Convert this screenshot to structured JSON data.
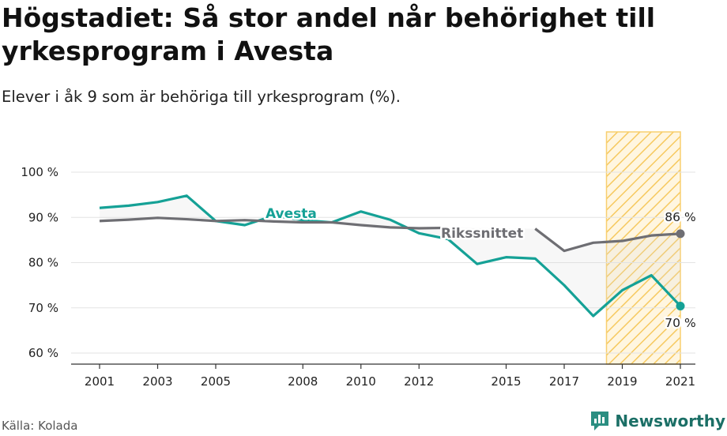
{
  "header": {
    "title": "Högstadiet: Så stor andel når behörighet till yrkesprogram i Avesta",
    "subtitle": "Elever i åk 9 som är behöriga till yrkesprogram (%)."
  },
  "footer": {
    "source": "Källa: Kolada",
    "brand": "Newsworthy"
  },
  "colors": {
    "avesta": "#15a196",
    "riket": "#6e6e73",
    "highlight_fill": "#fde3a4",
    "highlight_stroke": "#f8cf6f",
    "grid": "#e3e3e3",
    "brand": "#1b6f66"
  },
  "chart_data": {
    "type": "line",
    "title": "Högstadiet: Så stor andel når behörighet till yrkesprogram i Avesta",
    "subtitle": "Elever i åk 9 som är behöriga till yrkesprogram (%).",
    "x": [
      2001,
      2002,
      2003,
      2004,
      2005,
      2006,
      2007,
      2008,
      2009,
      2010,
      2011,
      2012,
      2013,
      2014,
      2015,
      2016,
      2017,
      2018,
      2019,
      2020,
      2021
    ],
    "x_ticks": [
      2001,
      2003,
      2005,
      2008,
      2010,
      2012,
      2015,
      2017,
      2019,
      2021
    ],
    "y_ticks": [
      100,
      90,
      80,
      70,
      60
    ],
    "y_tick_format": "{v} %",
    "ylim": [
      60,
      100
    ],
    "grid": true,
    "series": [
      {
        "name": "Avesta",
        "color": "#15a196",
        "values": [
          92.1,
          92.6,
          93.4,
          94.8,
          89.2,
          88.3,
          90.4,
          89.4,
          88.9,
          91.3,
          89.5,
          86.5,
          85.2,
          79.7,
          81.2,
          80.9,
          75.0,
          68.2,
          73.9,
          77.2,
          70.4
        ]
      },
      {
        "name": "Rikssnittet",
        "color": "#6e6e73",
        "values": [
          89.2,
          89.5,
          89.9,
          89.6,
          89.2,
          89.4,
          89.1,
          88.9,
          88.9,
          88.3,
          87.8,
          87.6,
          87.7,
          null,
          null,
          87.5,
          82.6,
          84.4,
          84.8,
          86.0,
          86.4
        ]
      }
    ],
    "series_labels": {
      "avesta": "Avesta",
      "riket": "Rikssnittet"
    },
    "end_labels": {
      "riket": "86 %",
      "avesta": "70 %"
    },
    "highlight_range": [
      2019,
      2021
    ]
  }
}
